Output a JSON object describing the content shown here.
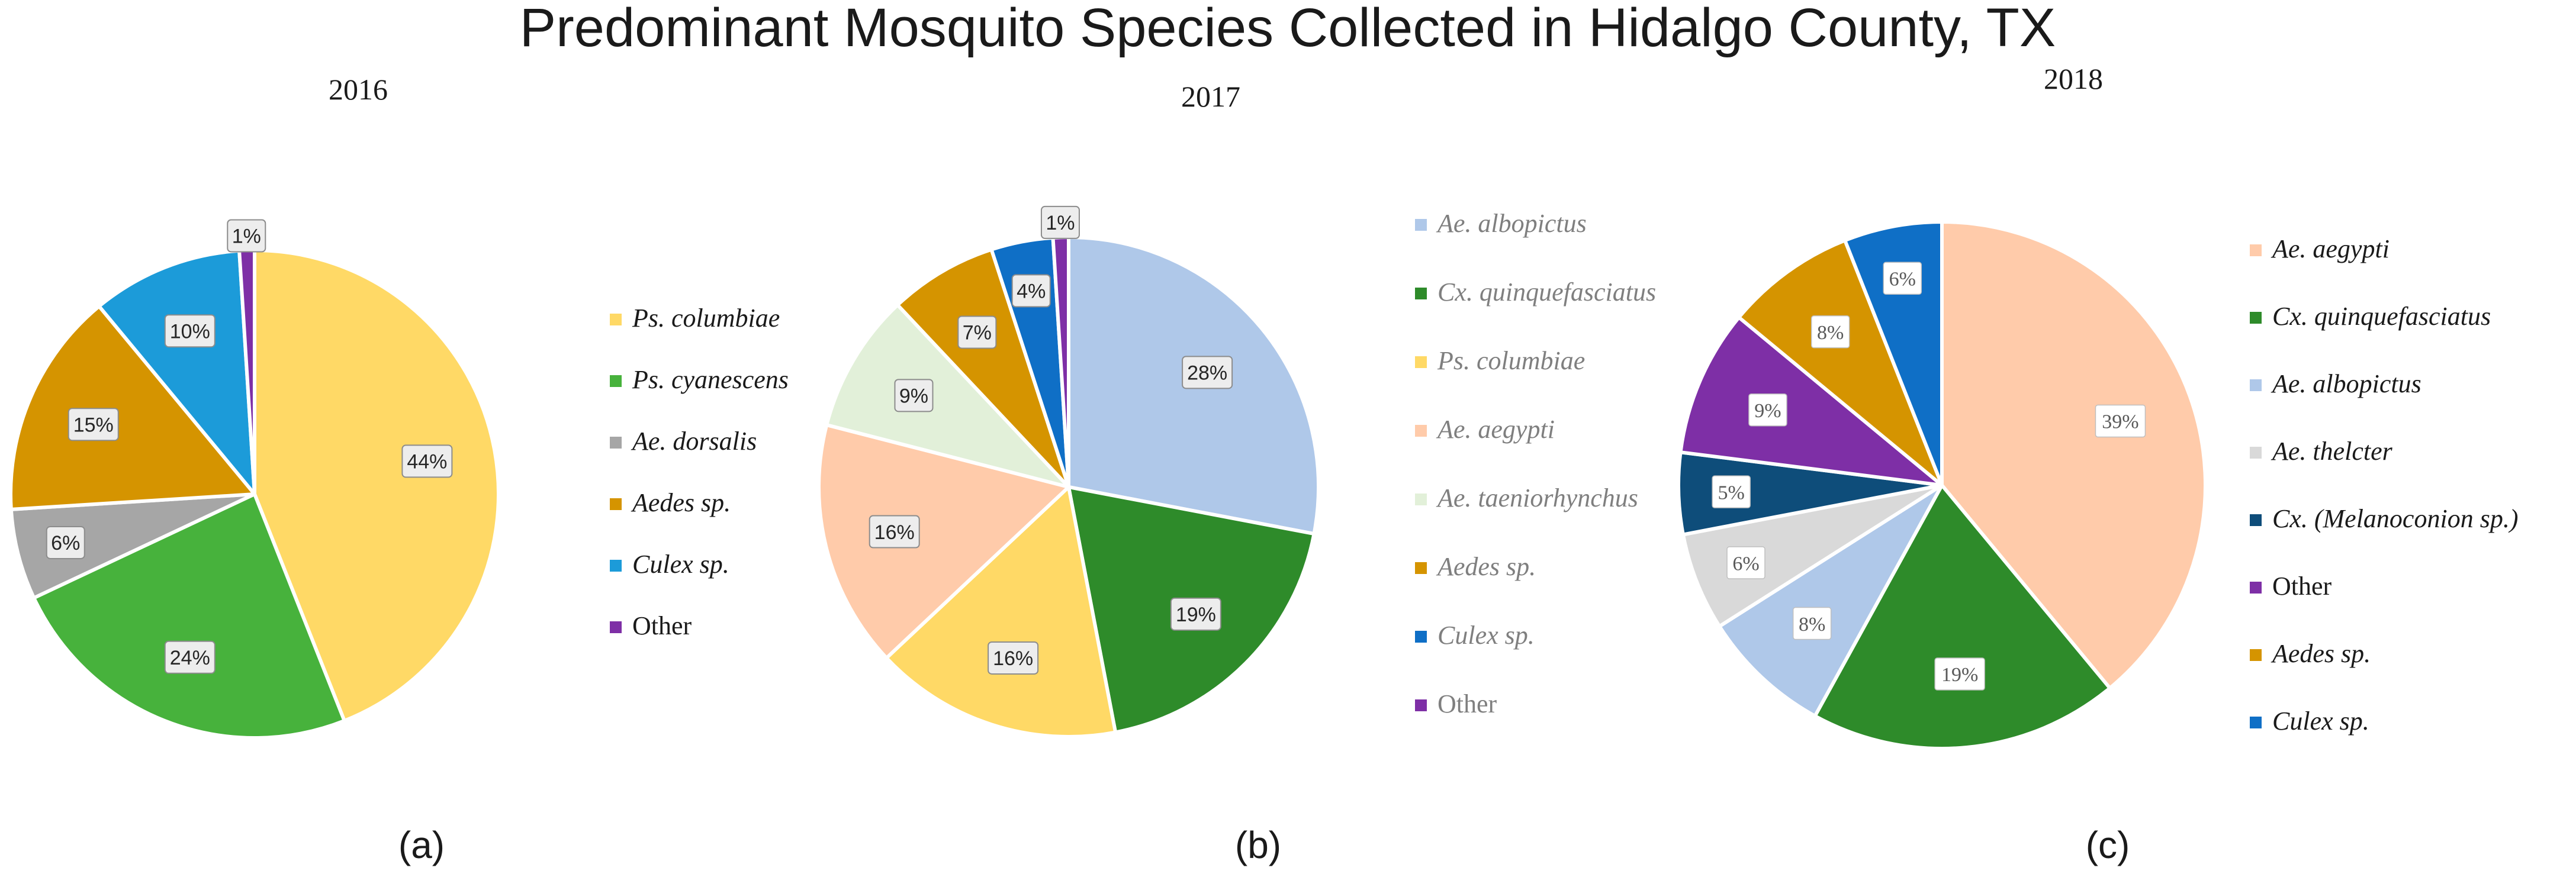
{
  "figure_title": "Predominant Mosquito Species Collected in Hidalgo County, TX",
  "chart_data": [
    {
      "type": "pie",
      "title": "2016",
      "panel_label": "(a)",
      "legend_position": "right",
      "label_style": "boxed",
      "slices": [
        {
          "label": "Ps. columbiae",
          "value": 44,
          "display": "44%",
          "color": "#FFD966",
          "italic": true
        },
        {
          "label": "Ps. cyanescens",
          "value": 24,
          "display": "24%",
          "color": "#47B23C",
          "italic": true
        },
        {
          "label": "Ae. dorsalis",
          "value": 6,
          "display": "6%",
          "color": "#A6A6A6",
          "italic": true
        },
        {
          "label": "Aedes sp.",
          "value": 15,
          "display": "15%",
          "color": "#D59400",
          "italic": true
        },
        {
          "label": "Culex sp.",
          "value": 10,
          "display": "10%",
          "color": "#1C9BD9",
          "italic": true
        },
        {
          "label": "Other",
          "value": 1,
          "display": "1%",
          "color": "#7E2FA6",
          "italic": false
        }
      ]
    },
    {
      "type": "pie",
      "title": "2017",
      "panel_label": "(b)",
      "legend_position": "right",
      "label_style": "boxed",
      "slices": [
        {
          "label": "Ae. albopictus",
          "value": 28,
          "display": "28%",
          "color": "#AFC8E9",
          "italic": true
        },
        {
          "label": "Cx. quinquefasciatus",
          "value": 19,
          "display": "19%",
          "color": "#2E8B2A",
          "italic": true
        },
        {
          "label": "Ps. columbiae",
          "value": 16,
          "display": "16%",
          "color": "#FFD966",
          "italic": true
        },
        {
          "label": "Ae. aegypti",
          "value": 16,
          "display": "16%",
          "color": "#FFCBAA",
          "italic": true
        },
        {
          "label": "Ae. taeniorhynchus",
          "value": 9,
          "display": "9%",
          "color": "#E2F0D9",
          "italic": true
        },
        {
          "label": "Aedes sp.",
          "value": 7,
          "display": "7%",
          "color": "#D59400",
          "italic": true
        },
        {
          "label": "Culex sp.",
          "value": 4,
          "display": "4%",
          "color": "#0F6FC6",
          "italic": true
        },
        {
          "label": "Other",
          "value": 1,
          "display": "1%",
          "color": "#7E2FA6",
          "italic": false
        }
      ]
    },
    {
      "type": "pie",
      "title": "2018",
      "panel_label": "(c)",
      "legend_position": "right",
      "label_style": "plain",
      "slices": [
        {
          "label": "Ae. aegypti",
          "value": 39,
          "display": "39%",
          "color": "#FFCBAA",
          "italic": true
        },
        {
          "label": "Cx. quinquefasciatus",
          "value": 19,
          "display": "19%",
          "color": "#2E8B2A",
          "italic": true
        },
        {
          "label": "Ae. albopictus",
          "value": 8,
          "display": "8%",
          "color": "#AFC8E9",
          "italic": true
        },
        {
          "label": "Ae. thelcter",
          "value": 6,
          "display": "6%",
          "color": "#D9D9D9",
          "italic": true
        },
        {
          "label": "Cx. (Melanoconion sp.)",
          "value": 5,
          "display": "5%",
          "color": "#0E4D7A",
          "italic": true
        },
        {
          "label": "Other",
          "value": 9,
          "display": "9%",
          "color": "#7E2FA6",
          "italic": false
        },
        {
          "label": "Aedes sp.",
          "value": 8,
          "display": "8%",
          "color": "#D59400",
          "italic": true
        },
        {
          "label": "Culex sp.",
          "value": 6,
          "display": "6%",
          "color": "#0F6FC6",
          "italic": true
        }
      ]
    }
  ]
}
